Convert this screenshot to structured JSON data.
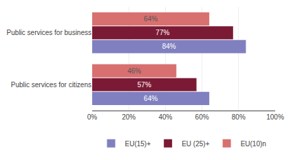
{
  "chart_data": {
    "type": "bar",
    "orientation": "horizontal",
    "categories": [
      "Public services for business",
      "Public services for citizens"
    ],
    "series": [
      {
        "name": "EU(15)+",
        "color": "#8080c0",
        "values": [
          84,
          64
        ],
        "value_labels": [
          "84%",
          "64%"
        ]
      },
      {
        "name": "EU (25)+",
        "color": "#7b1a35",
        "values": [
          77,
          57
        ],
        "value_labels": [
          "77%",
          "57%"
        ]
      },
      {
        "name": "EU(10)n",
        "color": "#d97070",
        "values": [
          64,
          46
        ],
        "value_labels": [
          "64%",
          "46%"
        ]
      }
    ],
    "xlim": [
      0,
      100
    ],
    "xticks": [
      {
        "value": 0,
        "label": "0%"
      },
      {
        "value": 20,
        "label": "20%"
      },
      {
        "value": 40,
        "label": "40%"
      },
      {
        "value": 60,
        "label": "60%"
      },
      {
        "value": 80,
        "label": "80%"
      },
      {
        "value": 100,
        "label": "100%"
      }
    ],
    "grid": true,
    "data_labels": true,
    "legend": "bottom"
  }
}
